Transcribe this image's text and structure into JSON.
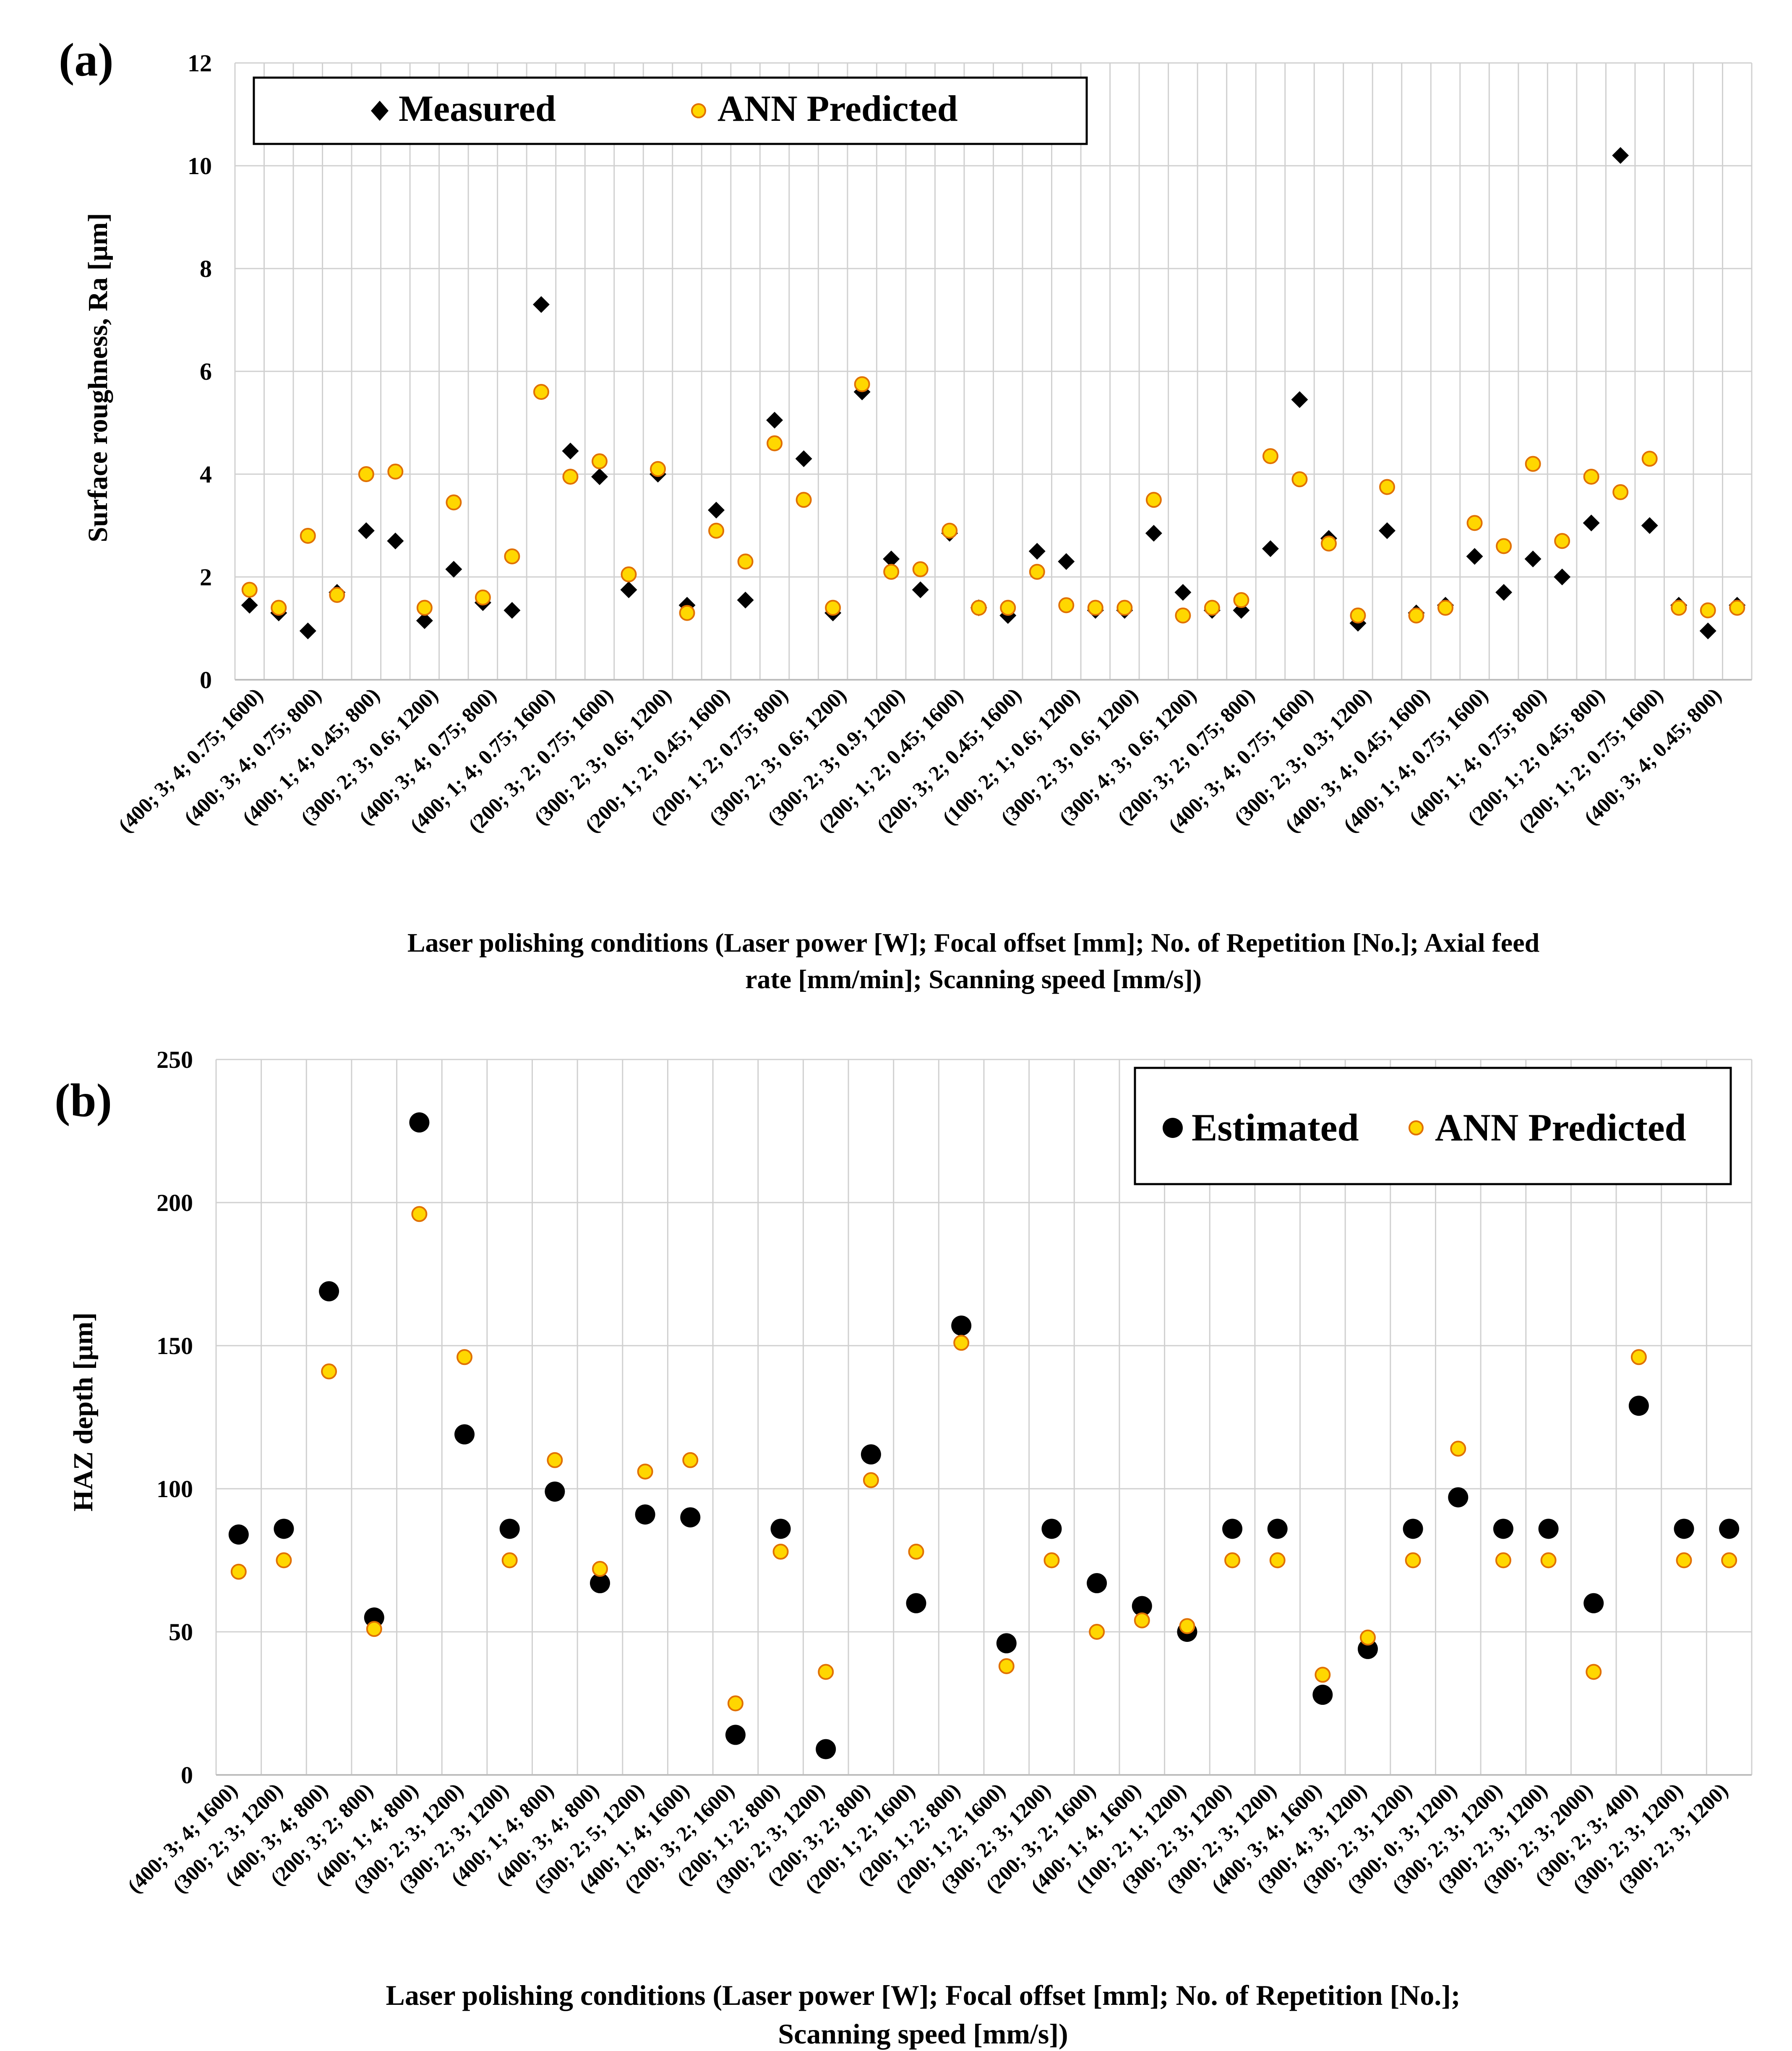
{
  "colors": {
    "measured": "#000000",
    "predicted_fill": "#FFD700",
    "predicted_stroke": "#E07000",
    "grid": "#D0D0D0"
  },
  "chart_data": [
    {
      "panel_label": "(a)",
      "type": "scatter",
      "ylabel": "Surface roughness, Ra [µm]",
      "xlabel_line1": "Laser polishing conditions (Laser power [W]; Focal offset [mm]; No. of Repetition [No.]; Axial feed",
      "xlabel_line2": "rate [mm/min]; Scanning speed [mm/s])",
      "ylim": [
        0,
        12
      ],
      "yticks": [
        0,
        2,
        4,
        6,
        8,
        10,
        12
      ],
      "grid": true,
      "legend_position": "top-left",
      "categories": [
        "(400; 3; 4; 0.75; 1600)",
        "",
        "(400; 3; 4; 0.75; 800)",
        "",
        "(400; 1; 4; 0.45; 800)",
        "",
        "(300; 2; 3; 0.6; 1200)",
        "",
        "(400; 3; 4; 0.75; 800)",
        "",
        "(400; 1; 4; 0.75; 1600)",
        "",
        "(200; 3; 2; 0.75; 1600)",
        "",
        "(300; 2; 3; 0.6; 1200)",
        "",
        "(200; 1; 2; 0.45; 1600)",
        "",
        "(200; 1; 2; 0.75; 800)",
        "",
        "(300; 2; 3; 0.6; 1200)",
        "",
        "(300; 2; 3; 0.9; 1200)",
        "",
        "(200; 1; 2; 0.45; 1600)",
        "",
        "(200; 3; 2; 0.45; 1600)",
        "",
        "(100; 2; 1; 0.6; 1200)",
        "",
        "(300; 2; 3; 0.6; 1200)",
        "",
        "(300; 4; 3; 0.6; 1200)",
        "",
        "(200; 3; 2; 0.75; 800)",
        "",
        "(400; 3; 4; 0.75; 1600)",
        "",
        "(300; 2; 3; 0.3; 1200)",
        "",
        "(400; 3; 4; 0.45; 1600)",
        "",
        "(400; 1; 4; 0.75; 1600)",
        "",
        "(400; 1; 4; 0.75; 800)",
        "",
        "(200; 1; 2; 0.45; 800)",
        "",
        "(200; 1; 2; 0.75; 1600)",
        "",
        "(400; 3; 4; 0.45; 800)",
        ""
      ],
      "series": [
        {
          "name": "Measured",
          "marker": "diamond",
          "values": [
            1.45,
            1.3,
            0.95,
            1.7,
            2.9,
            2.7,
            1.15,
            2.15,
            1.5,
            1.35,
            7.3,
            4.45,
            3.95,
            1.75,
            4.0,
            1.45,
            3.3,
            1.55,
            5.05,
            4.3,
            1.3,
            5.6,
            2.35,
            1.75,
            2.85,
            1.4,
            1.25,
            2.5,
            2.3,
            1.35,
            1.35,
            2.85,
            1.7,
            1.35,
            1.35,
            2.55,
            5.45,
            2.75,
            1.1,
            2.9,
            1.3,
            1.45,
            2.4,
            1.7,
            2.35,
            2.0,
            3.05,
            10.2,
            3.0,
            1.45,
            0.95,
            1.45
          ]
        },
        {
          "name": "ANN Predicted",
          "marker": "circle",
          "values": [
            1.75,
            1.4,
            2.8,
            1.65,
            4.0,
            4.05,
            1.4,
            3.45,
            1.6,
            2.4,
            5.6,
            3.95,
            4.25,
            2.05,
            4.1,
            1.3,
            2.9,
            2.3,
            4.6,
            3.5,
            1.4,
            5.75,
            2.1,
            2.15,
            2.9,
            1.4,
            1.4,
            2.1,
            1.45,
            1.4,
            1.4,
            3.5,
            1.25,
            1.4,
            1.55,
            4.35,
            3.9,
            2.65,
            1.25,
            3.75,
            1.25,
            1.4,
            3.05,
            2.6,
            4.2,
            2.7,
            3.95,
            3.65,
            4.3,
            1.4,
            1.35,
            1.4
          ]
        }
      ]
    },
    {
      "panel_label": "(b)",
      "type": "scatter",
      "ylabel": "HAZ depth [µm]",
      "xlabel_line1": "Laser polishing conditions (Laser power [W]; Focal offset [mm]; No. of Repetition [No.];",
      "xlabel_line2": "Scanning speed [mm/s])",
      "ylim": [
        0,
        250
      ],
      "yticks": [
        0,
        50,
        100,
        150,
        200,
        250
      ],
      "grid": true,
      "legend_position": "top-right",
      "categories": [
        "(400; 3; 4; 1600)",
        "(300; 2; 3; 1200)",
        "(400; 3; 4; 800)",
        "(200; 3; 2; 800)",
        "(400; 1; 4; 800)",
        "(300; 2; 3; 1200)",
        "(300; 2; 3; 1200)",
        "(400; 1; 4; 800)",
        "(400; 3; 4; 800)",
        "(500; 2; 5; 1200)",
        "(400; 1; 4; 1600)",
        "(200; 3; 2; 1600)",
        "(200; 1; 2; 800)",
        "(300; 2; 3; 1200)",
        "(200; 3; 2; 800)",
        "(200; 1; 2; 1600)",
        "(200; 1; 2; 800)",
        "(200; 1; 2; 1600)",
        "(300; 2; 3; 1200)",
        "(200; 3; 2; 1600)",
        "(400; 1; 4; 1600)",
        "(100; 2; 1; 1200)",
        "(300; 2; 3; 1200)",
        "(300; 2; 3; 1200)",
        "(400; 3; 4; 1600)",
        "(300; 4; 3; 1200)",
        "(300; 2; 3; 1200)",
        "(300; 0; 3; 1200)",
        "(300; 2; 3; 1200)",
        "(300; 2; 3; 1200)",
        "(300; 2; 3; 2000)",
        "(300; 2; 3; 400)",
        "(300; 2; 3; 1200)",
        "(300; 2; 3; 1200)"
      ],
      "series": [
        {
          "name": "Estimated",
          "marker": "circle-large",
          "values": [
            84,
            86,
            169,
            55,
            228,
            119,
            86,
            99,
            67,
            91,
            90,
            14,
            86,
            9,
            112,
            60,
            157,
            46,
            86,
            67,
            59,
            50,
            86,
            86,
            28,
            44,
            86,
            97,
            86,
            86,
            60,
            129,
            86,
            86
          ]
        },
        {
          "name": "ANN Predicted",
          "marker": "circle",
          "values": [
            71,
            75,
            141,
            51,
            196,
            146,
            75,
            110,
            72,
            106,
            110,
            25,
            78,
            36,
            103,
            78,
            151,
            38,
            75,
            50,
            54,
            52,
            75,
            75,
            35,
            48,
            75,
            114,
            75,
            75,
            36,
            146,
            75,
            75
          ]
        }
      ]
    }
  ]
}
